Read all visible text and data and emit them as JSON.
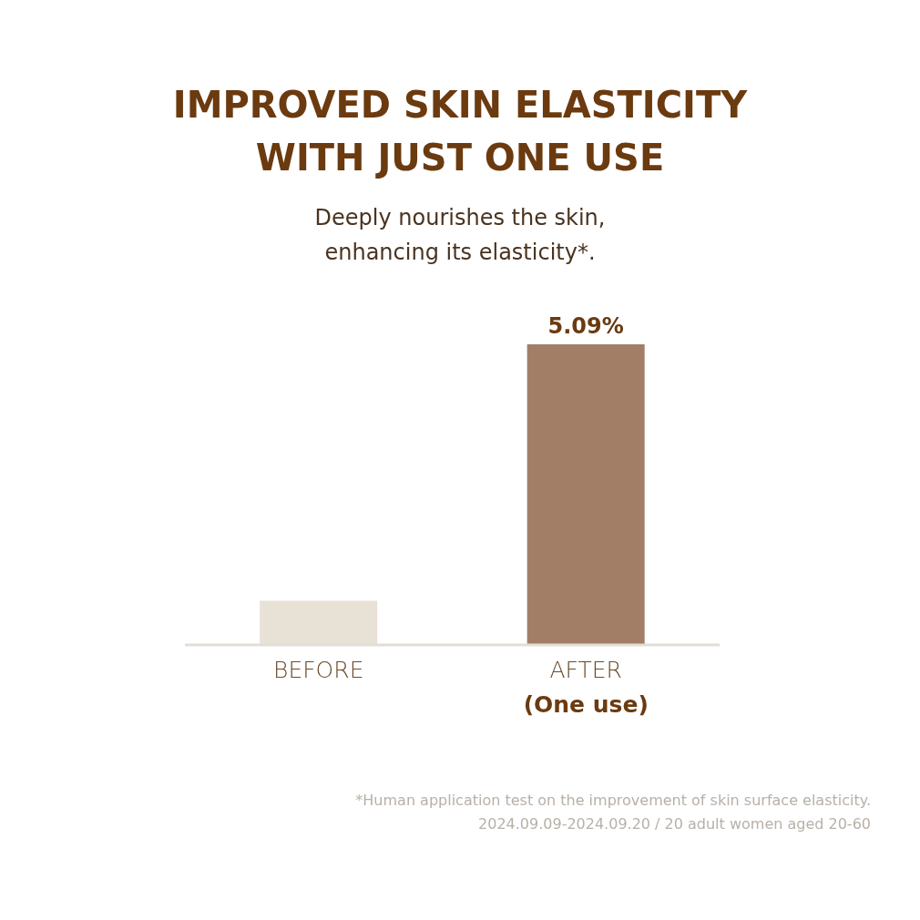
{
  "chart_data": {
    "type": "bar",
    "title": "IMPROVED SKIN ELASTICITY\nWITH JUST ONE USE",
    "subtitle": "Deeply nourishes the skin,\nenhancing its elasticity*.",
    "categories": [
      "BEFORE",
      "AFTER\n(One use)"
    ],
    "values": [
      0.75,
      5.09
    ],
    "colors": [
      "#e8e1d6",
      "#a37e66"
    ],
    "value_labels": [
      null,
      "5.09%"
    ],
    "annotations": [
      "*Human application test on the improvement of skin surface elasticity.\n2024.09.09-2024.09.20 / 20 adult women aged 20-60"
    ]
  }
}
